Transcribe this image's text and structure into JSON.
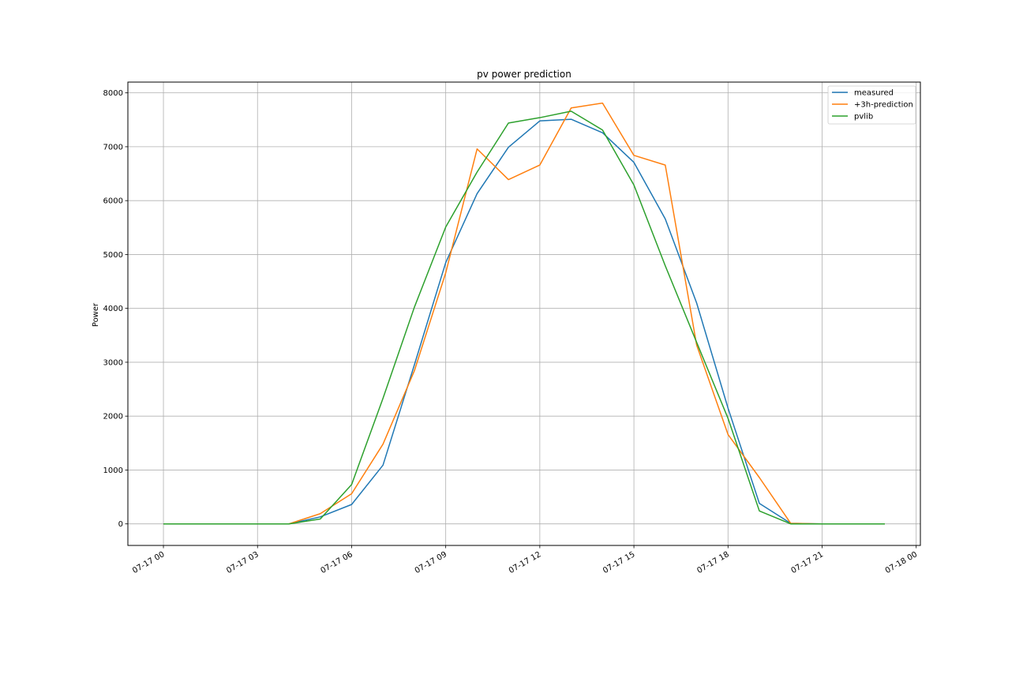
{
  "chart_data": {
    "type": "line",
    "title": "pv power prediction",
    "xlabel": "",
    "ylabel": "Power",
    "grid": true,
    "legend_position": "top-right",
    "xlim": [
      "07-16 22:52",
      "07-18 00:08"
    ],
    "ylim": [
      -400,
      8200
    ],
    "x_ticks": [
      "07-17 00",
      "07-17 03",
      "07-17 06",
      "07-17 09",
      "07-17 12",
      "07-17 15",
      "07-17 18",
      "07-17 21",
      "07-18 00"
    ],
    "y_ticks": [
      0,
      1000,
      2000,
      3000,
      4000,
      5000,
      6000,
      7000,
      8000
    ],
    "y_tick_labels": [
      "0",
      "1000",
      "2000",
      "3000",
      "4000",
      "5000",
      "6000",
      "7000",
      "8000"
    ],
    "x": [
      "07-17 00",
      "07-17 01",
      "07-17 02",
      "07-17 03",
      "07-17 04",
      "07-17 05",
      "07-17 06",
      "07-17 07",
      "07-17 08",
      "07-17 09",
      "07-17 10",
      "07-17 11",
      "07-17 12",
      "07-17 13",
      "07-17 14",
      "07-17 15",
      "07-17 16",
      "07-17 17",
      "07-17 18",
      "07-17 19",
      "07-17 20",
      "07-17 21",
      "07-17 22",
      "07-17 23"
    ],
    "series": [
      {
        "name": "measured",
        "color": "#1f77b4",
        "values": [
          0,
          0,
          0,
          0,
          0,
          130,
          360,
          1090,
          2950,
          4850,
          6130,
          6990,
          7480,
          7510,
          7260,
          6710,
          5660,
          4100,
          2150,
          380,
          10,
          0,
          0,
          0
        ]
      },
      {
        "name": "+3h-prediction",
        "color": "#ff7f0e",
        "values": [
          0,
          0,
          0,
          0,
          0,
          190,
          560,
          1480,
          2840,
          4660,
          6960,
          6390,
          6660,
          7720,
          7810,
          6840,
          6660,
          3320,
          1660,
          860,
          10,
          0,
          0,
          0
        ]
      },
      {
        "name": "pvlib",
        "color": "#2ca02c",
        "values": [
          0,
          0,
          0,
          0,
          0,
          90,
          730,
          2330,
          4020,
          5510,
          6530,
          7440,
          7540,
          7660,
          7310,
          6290,
          4790,
          3370,
          1960,
          240,
          0,
          0,
          0,
          0
        ]
      }
    ]
  }
}
